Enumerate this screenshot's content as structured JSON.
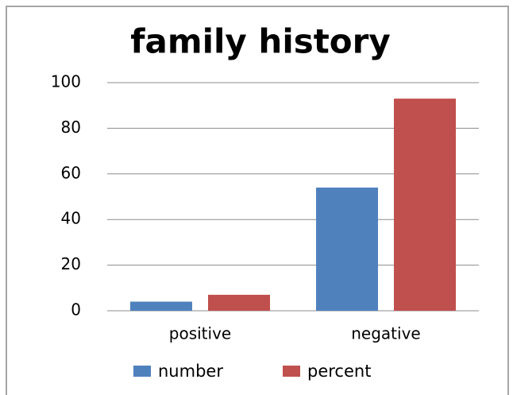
{
  "chart_data": {
    "type": "bar",
    "title": "family history",
    "categories": [
      "positive",
      "negative"
    ],
    "series": [
      {
        "name": "number",
        "color": "#4f81bd",
        "values": [
          4,
          54
        ]
      },
      {
        "name": "percent",
        "color": "#c0504d",
        "values": [
          7,
          93
        ]
      }
    ],
    "ylim": [
      0,
      100
    ],
    "yticks": [
      0,
      20,
      40,
      60,
      80,
      100
    ],
    "grid": true
  }
}
